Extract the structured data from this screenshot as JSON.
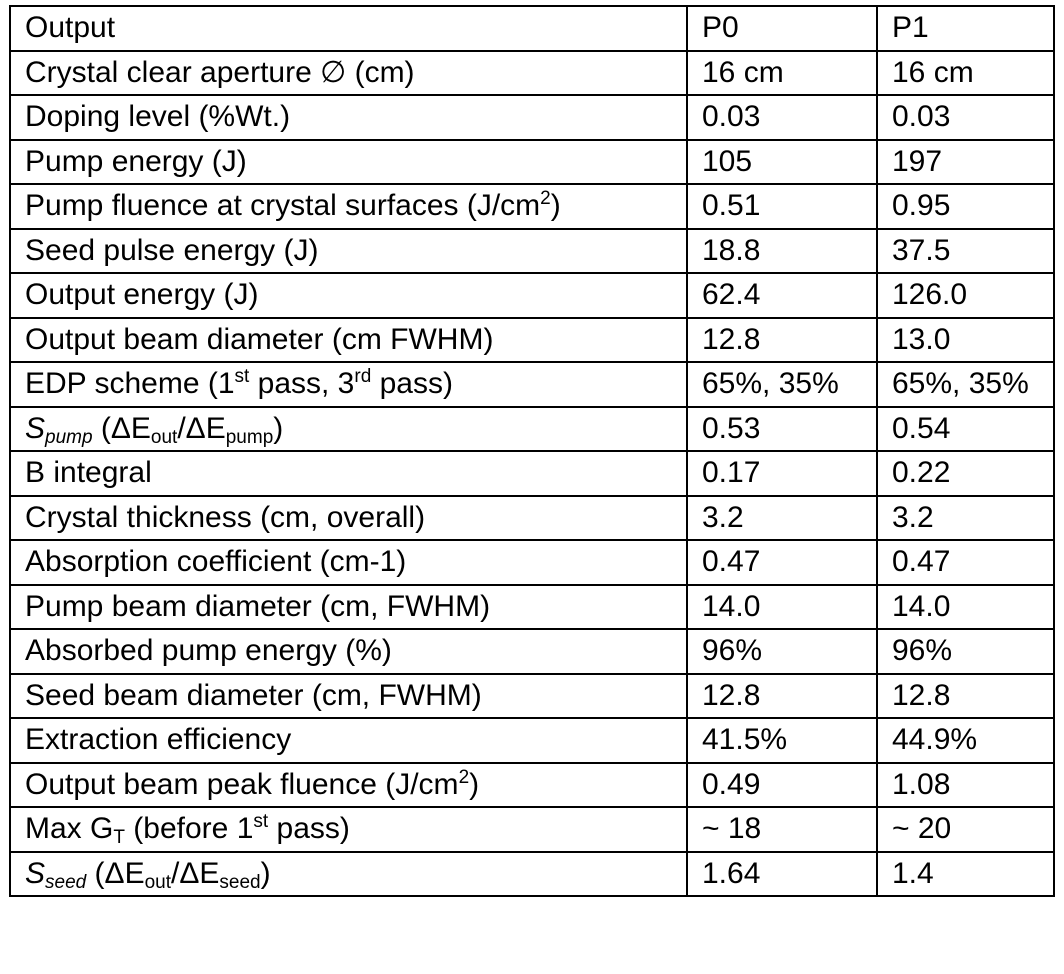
{
  "table": {
    "header": {
      "label": "Output",
      "col1": "P0",
      "col2": "P1"
    },
    "rows": [
      {
        "label": "Crystal clear aperture ∅ (cm)",
        "p0": "16 cm",
        "p1": "16 cm"
      },
      {
        "label": "Doping level (%Wt.)",
        "p0": "0.03",
        "p1": "0.03"
      },
      {
        "label": "Pump energy (J)",
        "p0": "105",
        "p1": "197"
      },
      {
        "label_parts": [
          "Pump fluence at crystal surfaces (J/cm",
          "2",
          ")"
        ],
        "p0": "0.51",
        "p1": "0.95"
      },
      {
        "label": "Seed pulse energy (J)",
        "p0": "18.8",
        "p1": "37.5"
      },
      {
        "label": "Output energy (J)",
        "p0": "62.4",
        "p1": "126.0"
      },
      {
        "label": "Output beam diameter (cm FWHM)",
        "p0": "12.8",
        "p1": "13.0"
      },
      {
        "label_parts": [
          "EDP scheme (1",
          "st",
          " pass, 3",
          "rd",
          " pass)"
        ],
        "p0": "65%, 35%",
        "p1": "65%, 35%"
      },
      {
        "label_parts": [
          "S",
          "pump",
          " (ΔE",
          "out",
          "/ΔE",
          "pump",
          ")"
        ],
        "p0": "0.53",
        "p1": "0.54"
      },
      {
        "label": "B integral",
        "p0": "0.17",
        "p1": "0.22"
      },
      {
        "label": "Crystal thickness (cm, overall)",
        "p0": "3.2",
        "p1": "3.2"
      },
      {
        "label": "Absorption coefficient (cm-1)",
        "p0": "0.47",
        "p1": "0.47"
      },
      {
        "label": "Pump beam diameter (cm, FWHM)",
        "p0": "14.0",
        "p1": "14.0"
      },
      {
        "label": "Absorbed pump energy (%)",
        "p0": "96%",
        "p1": "96%"
      },
      {
        "label": "Seed beam diameter (cm, FWHM)",
        "p0": "12.8",
        "p1": "12.8"
      },
      {
        "label": "Extraction efficiency",
        "p0": "41.5%",
        "p1": "44.9%"
      },
      {
        "label_parts": [
          "Output beam peak fluence (J/cm",
          "2",
          ")"
        ],
        "p0": "0.49",
        "p1": "1.08"
      },
      {
        "label_parts": [
          "Max G",
          "T",
          " (before 1",
          "st",
          " pass)"
        ],
        "p0": "~ 18",
        "p1": "~ 20"
      },
      {
        "label_parts": [
          "S",
          "seed",
          " (ΔE",
          "out",
          "/ΔE",
          "seed",
          ")"
        ],
        "p0": "1.64",
        "p1": "1.4"
      }
    ]
  }
}
